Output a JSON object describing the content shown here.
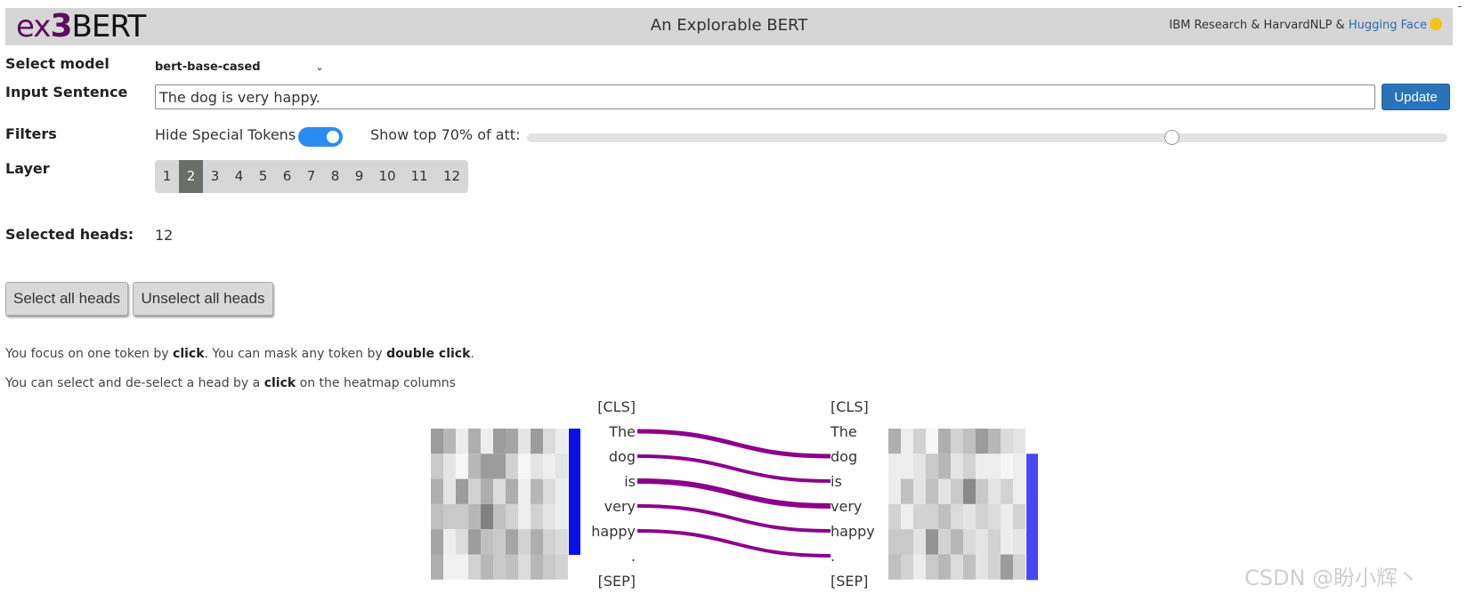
{
  "header": {
    "logo": {
      "ex": "ex",
      "three": "3",
      "bert": "BERT"
    },
    "title": "An Explorable BERT",
    "credits_prefix": "IBM Research & HarvardNLP & ",
    "credits_link": "Hugging Face",
    "corner_mark": "-"
  },
  "controls": {
    "select_model_label": "Select model",
    "model_value": "bert-base-cased",
    "input_label": "Input Sentence",
    "input_value": "The dog is very happy.",
    "update_label": "Update",
    "filters_label": "Filters",
    "hide_special_label": "Hide Special Tokens",
    "hide_special_on": true,
    "show_top_label": "Show top 70% of att:",
    "show_top_percent": 70,
    "layer_label": "Layer",
    "layers": [
      "1",
      "2",
      "3",
      "4",
      "5",
      "6",
      "7",
      "8",
      "9",
      "10",
      "11",
      "12"
    ],
    "active_layer": "2",
    "selected_heads_label": "Selected heads:",
    "selected_heads_value": "12",
    "select_all_label": "Select all heads",
    "unselect_all_label": "Unselect all heads"
  },
  "hints": {
    "line1_a": "You focus on one token by ",
    "line1_b": "click",
    "line1_c": ". You can mask any token by ",
    "line1_d": "double click",
    "line1_e": ".",
    "line2_a": "You can select and de-select a head by a ",
    "line2_b": "click",
    "line2_c": " on the heatmap columns"
  },
  "attention": {
    "left_tokens": [
      "[CLS]",
      "The",
      "dog",
      "is",
      "very",
      "happy",
      ".",
      "[SEP]"
    ],
    "right_tokens": [
      "[CLS]",
      "The",
      "dog",
      "is",
      "very",
      "happy",
      ".",
      "[SEP]"
    ],
    "links": [
      {
        "from": 1,
        "to": 2,
        "weight": 5
      },
      {
        "from": 2,
        "to": 3,
        "weight": 4
      },
      {
        "from": 3,
        "to": 4,
        "weight": 6
      },
      {
        "from": 4,
        "to": 5,
        "weight": 4
      },
      {
        "from": 5,
        "to": 6,
        "weight": 4
      }
    ],
    "line_color": "#8b008b",
    "bar_color": "#0a12e8",
    "bar_color_right": "#4747f5",
    "left_heatmap": [
      [
        0.55,
        0.4,
        0.1,
        0.45,
        0.1,
        0.55,
        0.5,
        0.15,
        0.55,
        0.2,
        0.1
      ],
      [
        0.3,
        0.15,
        0.05,
        0.4,
        0.55,
        0.55,
        0.25,
        0.05,
        0.15,
        0.1,
        0.15
      ],
      [
        0.45,
        0.15,
        0.55,
        0.25,
        0.45,
        0.2,
        0.45,
        0.1,
        0.4,
        0.2,
        0.1
      ],
      [
        0.35,
        0.3,
        0.3,
        0.4,
        0.7,
        0.35,
        0.25,
        0.1,
        0.25,
        0.15,
        0.1
      ],
      [
        0.5,
        0.1,
        0.2,
        0.55,
        0.35,
        0.3,
        0.5,
        0.25,
        0.45,
        0.25,
        0.2
      ],
      [
        0.45,
        0.08,
        0.08,
        0.25,
        0.4,
        0.3,
        0.35,
        0.2,
        0.4,
        0.3,
        0.25
      ]
    ],
    "right_heatmap": [
      [
        0.45,
        0.1,
        0.25,
        0.05,
        0.45,
        0.25,
        0.35,
        0.55,
        0.4,
        0.2,
        0.15
      ],
      [
        0.1,
        0.1,
        0.15,
        0.3,
        0.4,
        0.15,
        0.25,
        0.1,
        0.1,
        0.05,
        0.1
      ],
      [
        0.1,
        0.35,
        0.15,
        0.35,
        0.15,
        0.3,
        0.65,
        0.3,
        0.15,
        0.25,
        0.1
      ],
      [
        0.25,
        0.1,
        0.25,
        0.25,
        0.35,
        0.2,
        0.15,
        0.25,
        0.2,
        0.1,
        0.25
      ],
      [
        0.3,
        0.3,
        0.15,
        0.6,
        0.25,
        0.4,
        0.2,
        0.15,
        0.25,
        0.1,
        0.15
      ],
      [
        0.35,
        0.25,
        0.1,
        0.3,
        0.4,
        0.2,
        0.35,
        0.15,
        0.25,
        0.55,
        0.25
      ]
    ],
    "left_bar_rows": [
      0,
      1,
      2,
      3,
      4
    ],
    "right_bar_rows": [
      1,
      2,
      3,
      4,
      5
    ]
  },
  "watermark": "CSDN @盼小辉丶"
}
